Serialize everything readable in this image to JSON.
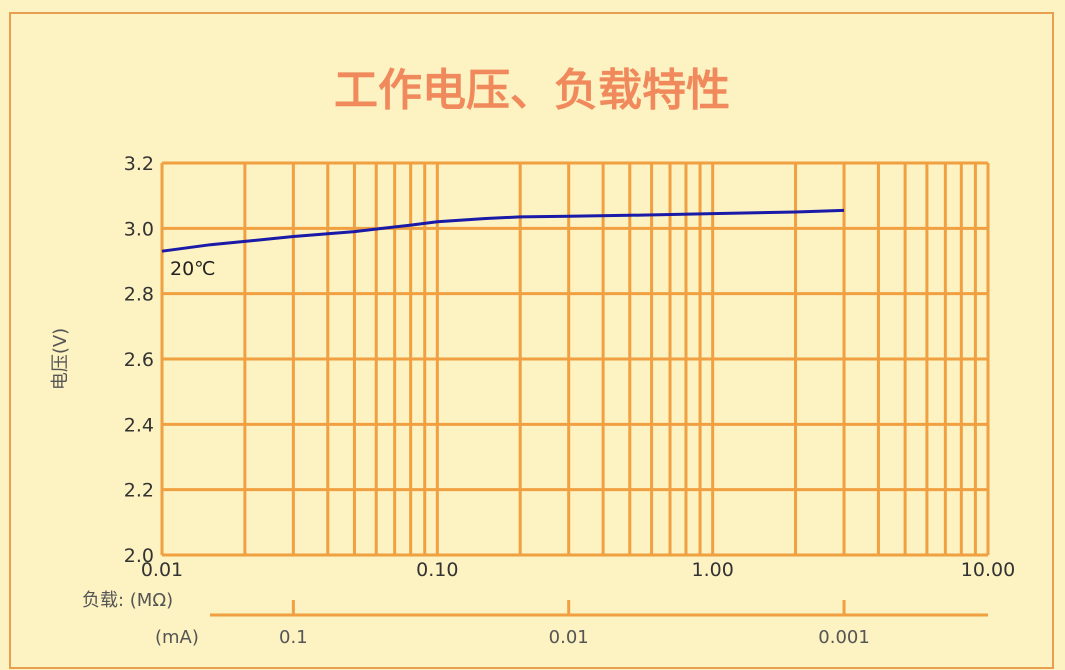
{
  "chart_data": {
    "type": "line",
    "title": "工作电压、负载特性",
    "ylabel": "电压(V)",
    "x_scale": "log",
    "xlim": [
      0.01,
      10.0
    ],
    "ylim": [
      2.0,
      3.2
    ],
    "yticks": [
      "2.0",
      "2.2",
      "2.4",
      "2.6",
      "2.8",
      "3.0",
      "3.2"
    ],
    "xticks": [
      {
        "value": 0.01,
        "label": "0.01"
      },
      {
        "value": 0.1,
        "label": "0.10"
      },
      {
        "value": 1.0,
        "label": "1.00"
      },
      {
        "value": 10.0,
        "label": "10.00"
      }
    ],
    "load_axis_label": "负载: (MΩ)",
    "current_axis": {
      "label": "(mA)",
      "ticks": [
        {
          "at_load": 0.03,
          "label": "0.1"
        },
        {
          "at_load": 0.3,
          "label": "0.01"
        },
        {
          "at_load": 3.0,
          "label": "0.001"
        }
      ]
    },
    "annotation": "20℃",
    "grid": true,
    "series": [
      {
        "color": "#1a1aa8",
        "x": [
          0.01,
          0.015,
          0.02,
          0.03,
          0.05,
          0.08,
          0.1,
          0.15,
          0.2,
          0.3,
          0.5,
          1.0,
          2.0,
          3.0
        ],
        "y": [
          2.93,
          2.95,
          2.96,
          2.975,
          2.99,
          3.01,
          3.02,
          3.03,
          3.035,
          3.037,
          3.04,
          3.045,
          3.05,
          3.055
        ]
      }
    ]
  }
}
